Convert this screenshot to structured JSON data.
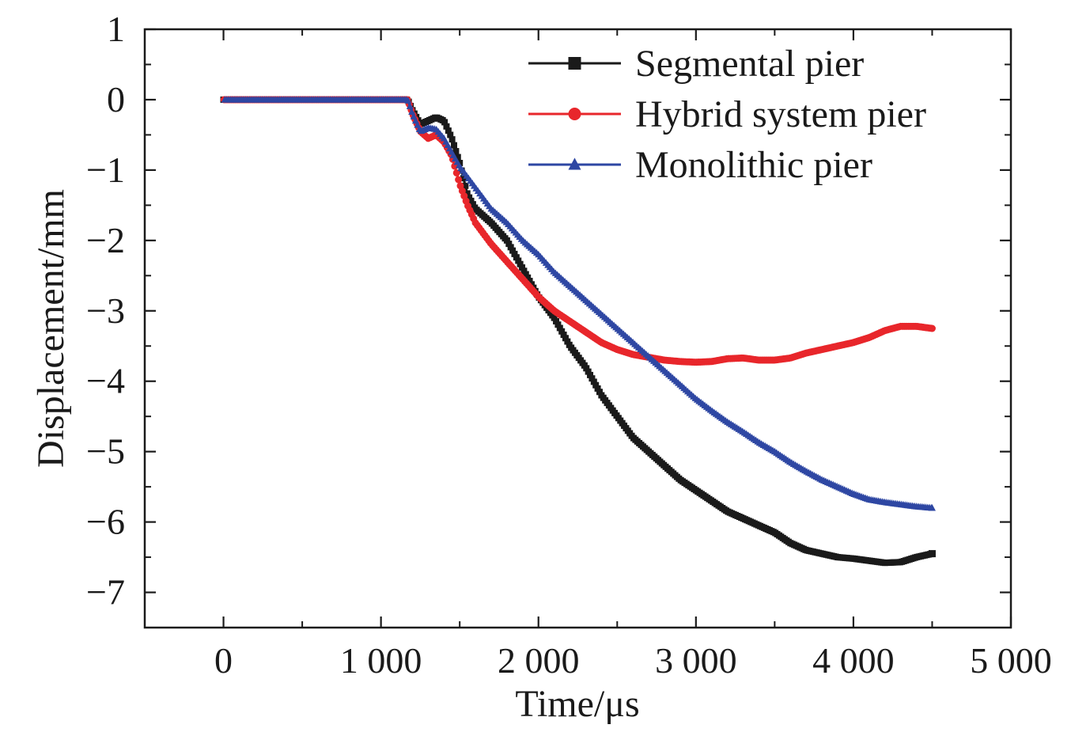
{
  "chart_data": {
    "type": "line",
    "title": "",
    "xlabel": "Time/μs",
    "ylabel": "Displacement/mm",
    "xlim": [
      -500,
      5000
    ],
    "ylim": [
      -7.5,
      1
    ],
    "xticks": [
      0,
      1000,
      2000,
      3000,
      4000,
      5000
    ],
    "xtick_labels": [
      "0",
      "1 000",
      "2 000",
      "3 000",
      "4 000",
      "5 000"
    ],
    "yticks": [
      1,
      0,
      -1,
      -2,
      -3,
      -4,
      -5,
      -6,
      -7
    ],
    "ytick_labels": [
      "1",
      "0",
      "−1",
      "−2",
      "−3",
      "−4",
      "−5",
      "−6",
      "−7"
    ],
    "grid": false,
    "legend_position": "top-right",
    "series": [
      {
        "name": "Segmental pier",
        "color": "#1a1a1a",
        "marker": "square",
        "points": [
          [
            0,
            0
          ],
          [
            1170,
            0
          ],
          [
            1200,
            -0.15
          ],
          [
            1250,
            -0.35
          ],
          [
            1300,
            -0.3
          ],
          [
            1350,
            -0.25
          ],
          [
            1400,
            -0.3
          ],
          [
            1450,
            -0.55
          ],
          [
            1500,
            -0.9
          ],
          [
            1550,
            -1.35
          ],
          [
            1600,
            -1.55
          ],
          [
            1700,
            -1.75
          ],
          [
            1800,
            -2.0
          ],
          [
            1900,
            -2.4
          ],
          [
            2000,
            -2.8
          ],
          [
            2100,
            -3.1
          ],
          [
            2200,
            -3.5
          ],
          [
            2300,
            -3.8
          ],
          [
            2400,
            -4.2
          ],
          [
            2500,
            -4.5
          ],
          [
            2600,
            -4.8
          ],
          [
            2700,
            -5.0
          ],
          [
            2800,
            -5.2
          ],
          [
            2900,
            -5.4
          ],
          [
            3000,
            -5.55
          ],
          [
            3100,
            -5.7
          ],
          [
            3200,
            -5.85
          ],
          [
            3300,
            -5.95
          ],
          [
            3400,
            -6.05
          ],
          [
            3500,
            -6.15
          ],
          [
            3600,
            -6.3
          ],
          [
            3700,
            -6.4
          ],
          [
            3800,
            -6.45
          ],
          [
            3900,
            -6.5
          ],
          [
            4000,
            -6.52
          ],
          [
            4100,
            -6.55
          ],
          [
            4200,
            -6.58
          ],
          [
            4300,
            -6.57
          ],
          [
            4400,
            -6.5
          ],
          [
            4500,
            -6.45
          ]
        ]
      },
      {
        "name": "Hybrid system pier",
        "color": "#e8262b",
        "marker": "circle",
        "points": [
          [
            0,
            0
          ],
          [
            1170,
            0
          ],
          [
            1200,
            -0.2
          ],
          [
            1250,
            -0.45
          ],
          [
            1300,
            -0.55
          ],
          [
            1350,
            -0.5
          ],
          [
            1400,
            -0.6
          ],
          [
            1450,
            -0.8
          ],
          [
            1500,
            -1.2
          ],
          [
            1550,
            -1.5
          ],
          [
            1600,
            -1.75
          ],
          [
            1700,
            -2.05
          ],
          [
            1800,
            -2.3
          ],
          [
            1900,
            -2.55
          ],
          [
            2000,
            -2.8
          ],
          [
            2100,
            -3.0
          ],
          [
            2200,
            -3.15
          ],
          [
            2300,
            -3.3
          ],
          [
            2400,
            -3.45
          ],
          [
            2500,
            -3.55
          ],
          [
            2600,
            -3.62
          ],
          [
            2700,
            -3.66
          ],
          [
            2800,
            -3.7
          ],
          [
            2900,
            -3.72
          ],
          [
            3000,
            -3.73
          ],
          [
            3100,
            -3.72
          ],
          [
            3200,
            -3.68
          ],
          [
            3300,
            -3.67
          ],
          [
            3400,
            -3.7
          ],
          [
            3500,
            -3.7
          ],
          [
            3600,
            -3.67
          ],
          [
            3700,
            -3.6
          ],
          [
            3800,
            -3.55
          ],
          [
            3900,
            -3.5
          ],
          [
            4000,
            -3.45
          ],
          [
            4100,
            -3.38
          ],
          [
            4200,
            -3.28
          ],
          [
            4300,
            -3.22
          ],
          [
            4400,
            -3.22
          ],
          [
            4500,
            -3.25
          ]
        ]
      },
      {
        "name": "Monolithic pier",
        "color": "#2e47a3",
        "marker": "triangle",
        "points": [
          [
            0,
            0
          ],
          [
            1170,
            0
          ],
          [
            1200,
            -0.2
          ],
          [
            1250,
            -0.45
          ],
          [
            1300,
            -0.4
          ],
          [
            1350,
            -0.42
          ],
          [
            1400,
            -0.55
          ],
          [
            1450,
            -0.75
          ],
          [
            1500,
            -0.95
          ],
          [
            1550,
            -1.1
          ],
          [
            1600,
            -1.25
          ],
          [
            1700,
            -1.55
          ],
          [
            1800,
            -1.75
          ],
          [
            1900,
            -2.0
          ],
          [
            2000,
            -2.2
          ],
          [
            2100,
            -2.45
          ],
          [
            2200,
            -2.65
          ],
          [
            2300,
            -2.85
          ],
          [
            2400,
            -3.05
          ],
          [
            2500,
            -3.25
          ],
          [
            2600,
            -3.45
          ],
          [
            2700,
            -3.65
          ],
          [
            2800,
            -3.85
          ],
          [
            2900,
            -4.05
          ],
          [
            3000,
            -4.25
          ],
          [
            3100,
            -4.42
          ],
          [
            3200,
            -4.58
          ],
          [
            3300,
            -4.72
          ],
          [
            3400,
            -4.87
          ],
          [
            3500,
            -5.0
          ],
          [
            3600,
            -5.15
          ],
          [
            3700,
            -5.28
          ],
          [
            3800,
            -5.4
          ],
          [
            3900,
            -5.5
          ],
          [
            4000,
            -5.6
          ],
          [
            4100,
            -5.68
          ],
          [
            4200,
            -5.72
          ],
          [
            4300,
            -5.75
          ],
          [
            4400,
            -5.78
          ],
          [
            4500,
            -5.8
          ]
        ]
      }
    ]
  }
}
